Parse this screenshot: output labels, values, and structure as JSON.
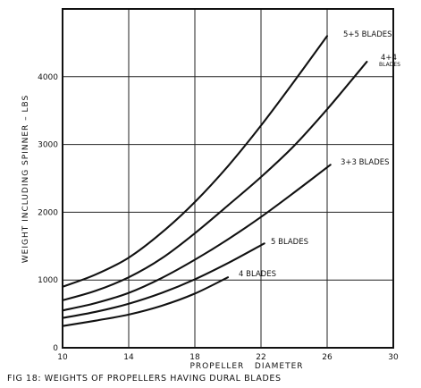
{
  "chart_data": {
    "type": "line",
    "title": "FIG 18: WEIGHTS OF PROPELLERS HAVING DURAL BLADES",
    "xlabel": "PROPELLER   DIAMETER",
    "ylabel": "WEIGHT INCLUDING SPINNER – LBS",
    "xlim": [
      10,
      30
    ],
    "ylim": [
      0,
      5000
    ],
    "xticks": [
      "10",
      "14",
      "18",
      "22",
      "26",
      "30"
    ],
    "xtick_values": [
      10,
      14,
      18,
      22,
      26,
      30
    ],
    "yticks": [
      "0",
      "1000",
      "2000",
      "3000",
      "4000"
    ],
    "ytick_values": [
      0,
      1000,
      2000,
      3000,
      4000
    ],
    "grid": true,
    "series": [
      {
        "name": "5+5 BLADES",
        "x": [
          10,
          12,
          14,
          16,
          18,
          20,
          22,
          24,
          26
        ],
        "y": [
          900,
          1080,
          1330,
          1700,
          2150,
          2680,
          3280,
          3930,
          4600
        ]
      },
      {
        "name": "4+4 BLADES",
        "x": [
          10,
          12,
          14,
          16,
          18,
          20,
          22,
          24,
          26,
          28.4
        ],
        "y": [
          700,
          840,
          1040,
          1320,
          1690,
          2100,
          2520,
          2980,
          3520,
          4220
        ]
      },
      {
        "name": "3+3 BLADES",
        "x": [
          10,
          12,
          14,
          16,
          18,
          20,
          22,
          24,
          26.2
        ],
        "y": [
          550,
          660,
          810,
          1030,
          1300,
          1600,
          1930,
          2290,
          2700
        ]
      },
      {
        "name": "5 BLADES",
        "x": [
          10,
          12,
          14,
          16,
          18,
          20,
          22.2
        ],
        "y": [
          440,
          530,
          650,
          810,
          1010,
          1250,
          1540
        ]
      },
      {
        "name": "4 BLADES",
        "x": [
          10,
          12,
          14,
          16,
          18,
          20
        ],
        "y": [
          320,
          400,
          490,
          620,
          800,
          1040
        ]
      }
    ],
    "label_parts": {
      "p55": "5+5 BLADES",
      "p44_top": "4+4",
      "p44_bottom": "BLADES",
      "p33": "3+3 BLADES",
      "p5": "5 BLADES",
      "p4": "4 BLADES"
    }
  }
}
